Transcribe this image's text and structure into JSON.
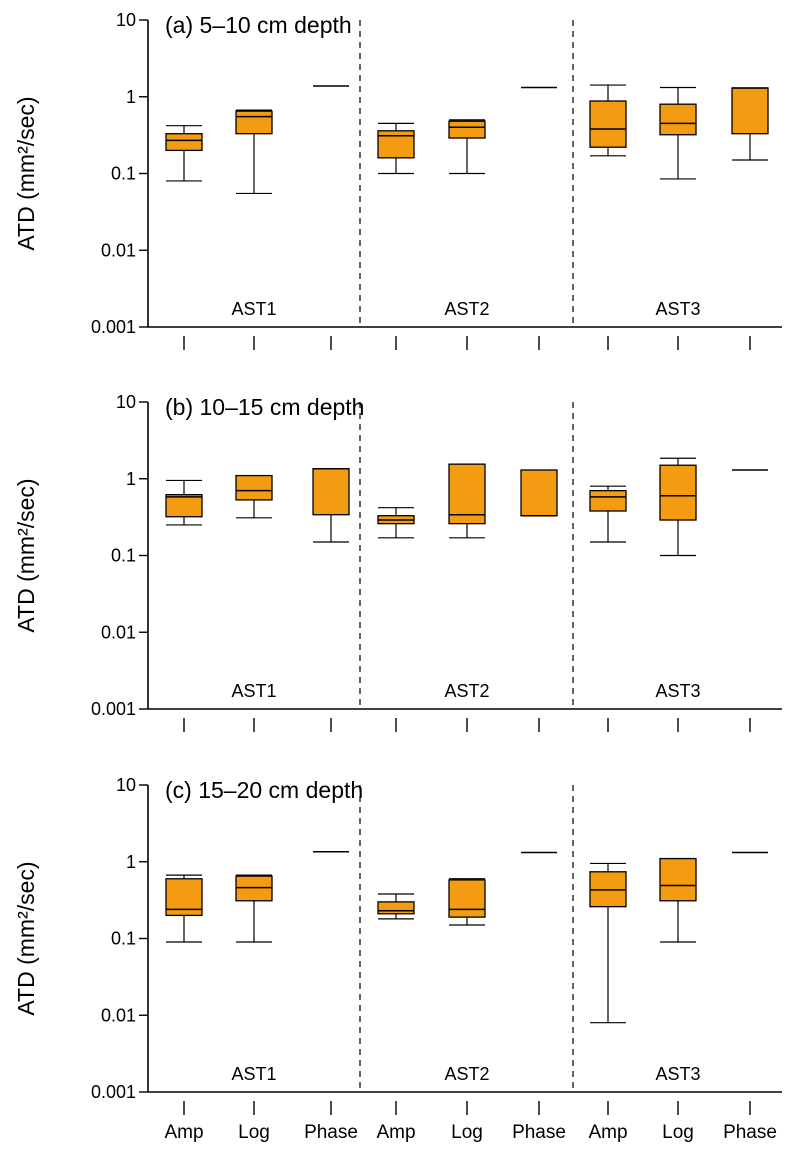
{
  "chart_data": [
    {
      "type": "box",
      "title": "(a) 5–10 cm depth",
      "ylabel": "ATD (mm²/sec)",
      "yscale": "log",
      "ylim": [
        0.001,
        10
      ],
      "yticks": [
        "10",
        "1",
        "0.1",
        "0.01",
        "0.001"
      ],
      "groups": [
        "AST1",
        "AST2",
        "AST3"
      ],
      "methods": [
        "Amp",
        "Log",
        "Phase"
      ],
      "boxes": [
        {
          "group": "AST1",
          "method": "Amp",
          "min": 0.08,
          "q1": 0.2,
          "median": 0.27,
          "q3": 0.33,
          "max": 0.42
        },
        {
          "group": "AST1",
          "method": "Log",
          "min": 0.055,
          "q1": 0.33,
          "median": 0.55,
          "q3": 0.65,
          "max": 0.67
        },
        {
          "group": "AST1",
          "method": "Phase",
          "min": 1.38,
          "q1": 1.38,
          "median": 1.38,
          "q3": 1.38,
          "max": 1.38
        },
        {
          "group": "AST2",
          "method": "Amp",
          "min": 0.1,
          "q1": 0.16,
          "median": 0.31,
          "q3": 0.36,
          "max": 0.45
        },
        {
          "group": "AST2",
          "method": "Log",
          "min": 0.1,
          "q1": 0.29,
          "median": 0.4,
          "q3": 0.48,
          "max": 0.5
        },
        {
          "group": "AST2",
          "method": "Phase",
          "min": 1.32,
          "q1": 1.32,
          "median": 1.32,
          "q3": 1.32,
          "max": 1.32
        },
        {
          "group": "AST3",
          "method": "Amp",
          "min": 0.17,
          "q1": 0.22,
          "median": 0.38,
          "q3": 0.88,
          "max": 1.42
        },
        {
          "group": "AST3",
          "method": "Log",
          "min": 0.085,
          "q1": 0.32,
          "median": 0.45,
          "q3": 0.8,
          "max": 1.32
        },
        {
          "group": "AST3",
          "method": "Phase",
          "min": 0.15,
          "q1": 0.33,
          "median": 1.3,
          "q3": 1.3,
          "max": 1.3
        }
      ]
    },
    {
      "type": "box",
      "title": "(b) 10–15 cm depth",
      "ylabel": "ATD (mm²/sec)",
      "yscale": "log",
      "ylim": [
        0.001,
        10
      ],
      "yticks": [
        "10",
        "1",
        "0.1",
        "0.01",
        "0.001"
      ],
      "groups": [
        "AST1",
        "AST2",
        "AST3"
      ],
      "methods": [
        "Amp",
        "Log",
        "Phase"
      ],
      "boxes": [
        {
          "group": "AST1",
          "method": "Amp",
          "min": 0.25,
          "q1": 0.32,
          "median": 0.58,
          "q3": 0.62,
          "max": 0.95
        },
        {
          "group": "AST1",
          "method": "Log",
          "min": 0.31,
          "q1": 0.53,
          "median": 0.7,
          "q3": 1.1,
          "max": 1.1
        },
        {
          "group": "AST1",
          "method": "Phase",
          "min": 0.15,
          "q1": 0.34,
          "median": 1.35,
          "q3": 1.35,
          "max": 1.35
        },
        {
          "group": "AST2",
          "method": "Amp",
          "min": 0.17,
          "q1": 0.26,
          "median": 0.29,
          "q3": 0.33,
          "max": 0.42
        },
        {
          "group": "AST2",
          "method": "Log",
          "min": 0.17,
          "q1": 0.26,
          "median": 0.34,
          "q3": 1.55,
          "max": 1.55
        },
        {
          "group": "AST2",
          "method": "Phase",
          "min": 0.33,
          "q1": 0.33,
          "median": 0.33,
          "q3": 1.3,
          "max": 1.3
        },
        {
          "group": "AST3",
          "method": "Amp",
          "min": 0.15,
          "q1": 0.38,
          "median": 0.58,
          "q3": 0.7,
          "max": 0.8
        },
        {
          "group": "AST3",
          "method": "Log",
          "min": 0.1,
          "q1": 0.29,
          "median": 0.6,
          "q3": 1.5,
          "max": 1.85
        },
        {
          "group": "AST3",
          "method": "Phase",
          "min": 1.3,
          "q1": 1.3,
          "median": 1.3,
          "q3": 1.3,
          "max": 1.3
        }
      ]
    },
    {
      "type": "box",
      "title": "(c) 15–20 cm depth",
      "ylabel": "ATD (mm²/sec)",
      "yscale": "log",
      "ylim": [
        0.001,
        10
      ],
      "yticks": [
        "10",
        "1",
        "0.1",
        "0.01",
        "0.001"
      ],
      "groups": [
        "AST1",
        "AST2",
        "AST3"
      ],
      "methods": [
        "Amp",
        "Log",
        "Phase"
      ],
      "boxes": [
        {
          "group": "AST1",
          "method": "Amp",
          "min": 0.09,
          "q1": 0.2,
          "median": 0.24,
          "q3": 0.6,
          "max": 0.67
        },
        {
          "group": "AST1",
          "method": "Log",
          "min": 0.09,
          "q1": 0.31,
          "median": 0.46,
          "q3": 0.65,
          "max": 0.67
        },
        {
          "group": "AST1",
          "method": "Phase",
          "min": 1.35,
          "q1": 1.35,
          "median": 1.35,
          "q3": 1.35,
          "max": 1.35
        },
        {
          "group": "AST2",
          "method": "Amp",
          "min": 0.18,
          "q1": 0.21,
          "median": 0.23,
          "q3": 0.3,
          "max": 0.38
        },
        {
          "group": "AST2",
          "method": "Log",
          "min": 0.15,
          "q1": 0.19,
          "median": 0.24,
          "q3": 0.58,
          "max": 0.6
        },
        {
          "group": "AST2",
          "method": "Phase",
          "min": 1.32,
          "q1": 1.32,
          "median": 1.32,
          "q3": 1.32,
          "max": 1.32
        },
        {
          "group": "AST3",
          "method": "Amp",
          "min": 0.008,
          "q1": 0.26,
          "median": 0.43,
          "q3": 0.74,
          "max": 0.95
        },
        {
          "group": "AST3",
          "method": "Log",
          "min": 0.09,
          "q1": 0.31,
          "median": 0.49,
          "q3": 1.1,
          "max": 1.1
        },
        {
          "group": "AST3",
          "method": "Phase",
          "min": 1.32,
          "q1": 1.32,
          "median": 1.32,
          "q3": 1.32,
          "max": 1.32
        }
      ]
    }
  ]
}
